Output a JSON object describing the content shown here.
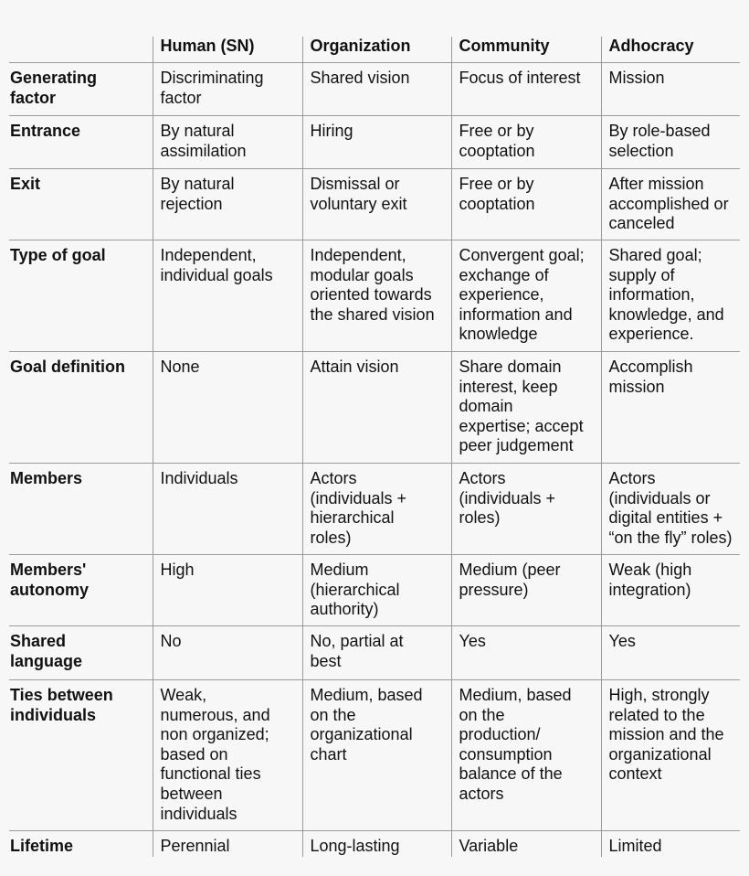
{
  "header": [
    "",
    "Human (SN)",
    "Organization",
    "Community",
    "Adhocracy"
  ],
  "rows": [
    {
      "label": "Generating\nfactor",
      "cells": [
        "Discriminating\nfactor",
        "Shared vision",
        "Focus of interest",
        "Mission"
      ]
    },
    {
      "label": "Entrance",
      "cells": [
        "By natural\nassimilation",
        "Hiring",
        "Free or by\ncooptation",
        "By role-based\nselection"
      ]
    },
    {
      "label": "Exit",
      "cells": [
        "By natural\nrejection",
        "Dismissal or\nvoluntary exit",
        "Free or by\ncooptation",
        "After mission\naccomplished or\ncanceled"
      ]
    },
    {
      "label": "Type of goal",
      "cells": [
        "Independent,\nindividual goals",
        "Independent,\nmodular goals\noriented towards\nthe shared vision",
        "Convergent goal;\nexchange of\nexperience,\ninformation and\nknowledge",
        "Shared goal;\nsupply of\ninformation,\nknowledge, and\nexperience."
      ]
    },
    {
      "label": "Goal definition",
      "cells": [
        "None",
        "Attain vision",
        "Share domain\ninterest, keep\ndomain\nexpertise; accept\npeer judgement",
        "Accomplish\nmission"
      ]
    },
    {
      "label": "Members",
      "cells": [
        "Individuals",
        "Actors\n(individuals +\nhierarchical\nroles)",
        "Actors\n(individuals +\nroles)",
        "Actors\n(individuals or\ndigital entities +\n“on the fly” roles)"
      ]
    },
    {
      "label": "Members'\nautonomy",
      "cells": [
        "High",
        "Medium\n(hierarchical\nauthority)",
        "Medium (peer\npressure)",
        "Weak (high\nintegration)"
      ]
    },
    {
      "label": "Shared\nlanguage",
      "cells": [
        "No",
        "No, partial at\nbest",
        "Yes",
        "Yes"
      ]
    },
    {
      "label": "Ties between\nindividuals",
      "cells": [
        "Weak,\nnumerous, and\nnon organized;\nbased on\nfunctional ties\nbetween\nindividuals",
        "Medium, based\non the\norganizational\nchart",
        "Medium, based\non the\nproduction/\nconsumption\nbalance of the\nactors",
        "High, strongly\nrelated to the\nmission and the\norganizational\ncontext"
      ]
    },
    {
      "label": "Lifetime",
      "cells": [
        "Perennial",
        "Long-lasting",
        "Variable",
        "Limited"
      ]
    }
  ]
}
